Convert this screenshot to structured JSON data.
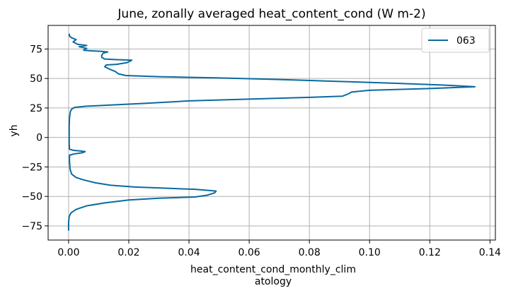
{
  "chart_data": {
    "type": "line",
    "title": "June, zonally averaged heat_content_cond (W m-2)",
    "xlabel_lines": [
      "heat_content_cond_monthly_clim",
      "atology"
    ],
    "ylabel": "yh",
    "xlim": [
      -0.0068,
      0.1418
    ],
    "ylim": [
      -87,
      95
    ],
    "xticks": [
      0.0,
      0.02,
      0.04,
      0.06,
      0.08,
      0.1,
      0.12,
      0.14
    ],
    "xtick_labels": [
      "0.00",
      "0.02",
      "0.04",
      "0.06",
      "0.08",
      "0.10",
      "0.12",
      "0.14"
    ],
    "yticks": [
      -75,
      -50,
      -25,
      0,
      25,
      50,
      75
    ],
    "ytick_labels": [
      "−75",
      "−50",
      "−25",
      "0",
      "25",
      "50",
      "75"
    ],
    "grid": true,
    "legend_position": "top-right",
    "series": [
      {
        "name": "063",
        "color": "#0a6aa0",
        "points": [
          [
            0.0,
            -79
          ],
          [
            0.0,
            -72
          ],
          [
            0.0002,
            -67
          ],
          [
            0.0008,
            -64
          ],
          [
            0.0025,
            -61
          ],
          [
            0.006,
            -58
          ],
          [
            0.012,
            -55.5
          ],
          [
            0.02,
            -53
          ],
          [
            0.03,
            -51.5
          ],
          [
            0.042,
            -50.5
          ],
          [
            0.046,
            -49
          ],
          [
            0.0485,
            -47
          ],
          [
            0.049,
            -45.5
          ],
          [
            0.047,
            -45
          ],
          [
            0.042,
            -44
          ],
          [
            0.032,
            -43
          ],
          [
            0.022,
            -42
          ],
          [
            0.014,
            -40.5
          ],
          [
            0.009,
            -38.5
          ],
          [
            0.005,
            -36
          ],
          [
            0.0025,
            -34
          ],
          [
            0.001,
            -31
          ],
          [
            0.0005,
            -27
          ],
          [
            0.0003,
            -20
          ],
          [
            0.0003,
            -15
          ],
          [
            0.0018,
            -14
          ],
          [
            0.0045,
            -13
          ],
          [
            0.0055,
            -12
          ],
          [
            0.004,
            -11.5
          ],
          [
            0.0018,
            -11
          ],
          [
            0.0003,
            -10
          ],
          [
            0.0002,
            -5
          ],
          [
            0.0002,
            0
          ],
          [
            0.0002,
            10
          ],
          [
            0.0003,
            17
          ],
          [
            0.0006,
            22
          ],
          [
            0.001,
            24
          ],
          [
            0.002,
            25.5
          ],
          [
            0.006,
            26.5
          ],
          [
            0.014,
            27.5
          ],
          [
            0.026,
            29
          ],
          [
            0.04,
            31
          ],
          [
            0.06,
            32.5
          ],
          [
            0.08,
            34
          ],
          [
            0.091,
            35
          ],
          [
            0.093,
            37
          ],
          [
            0.094,
            38.5
          ],
          [
            0.1,
            40
          ],
          [
            0.12,
            41.5
          ],
          [
            0.135,
            43
          ],
          [
            0.124,
            44.5
          ],
          [
            0.108,
            46
          ],
          [
            0.09,
            47.5
          ],
          [
            0.072,
            49
          ],
          [
            0.05,
            50.5
          ],
          [
            0.03,
            51.5
          ],
          [
            0.019,
            52.5
          ],
          [
            0.0165,
            54
          ],
          [
            0.0155,
            56
          ],
          [
            0.0135,
            58
          ],
          [
            0.012,
            60
          ],
          [
            0.0125,
            61.5
          ],
          [
            0.016,
            62
          ],
          [
            0.0195,
            63.5
          ],
          [
            0.021,
            65.5
          ],
          [
            0.016,
            66
          ],
          [
            0.012,
            66.5
          ],
          [
            0.011,
            68
          ],
          [
            0.011,
            69.5
          ],
          [
            0.0115,
            71.5
          ],
          [
            0.013,
            72.5
          ],
          [
            0.011,
            73
          ],
          [
            0.007,
            73.5
          ],
          [
            0.005,
            74
          ],
          [
            0.006,
            75.5
          ],
          [
            0.0035,
            77
          ],
          [
            0.006,
            78
          ],
          [
            0.003,
            79
          ],
          [
            0.0015,
            81
          ],
          [
            0.0025,
            83
          ],
          [
            0.001,
            84.5
          ],
          [
            0.0003,
            86
          ],
          [
            0.0002,
            88
          ]
        ]
      }
    ]
  }
}
